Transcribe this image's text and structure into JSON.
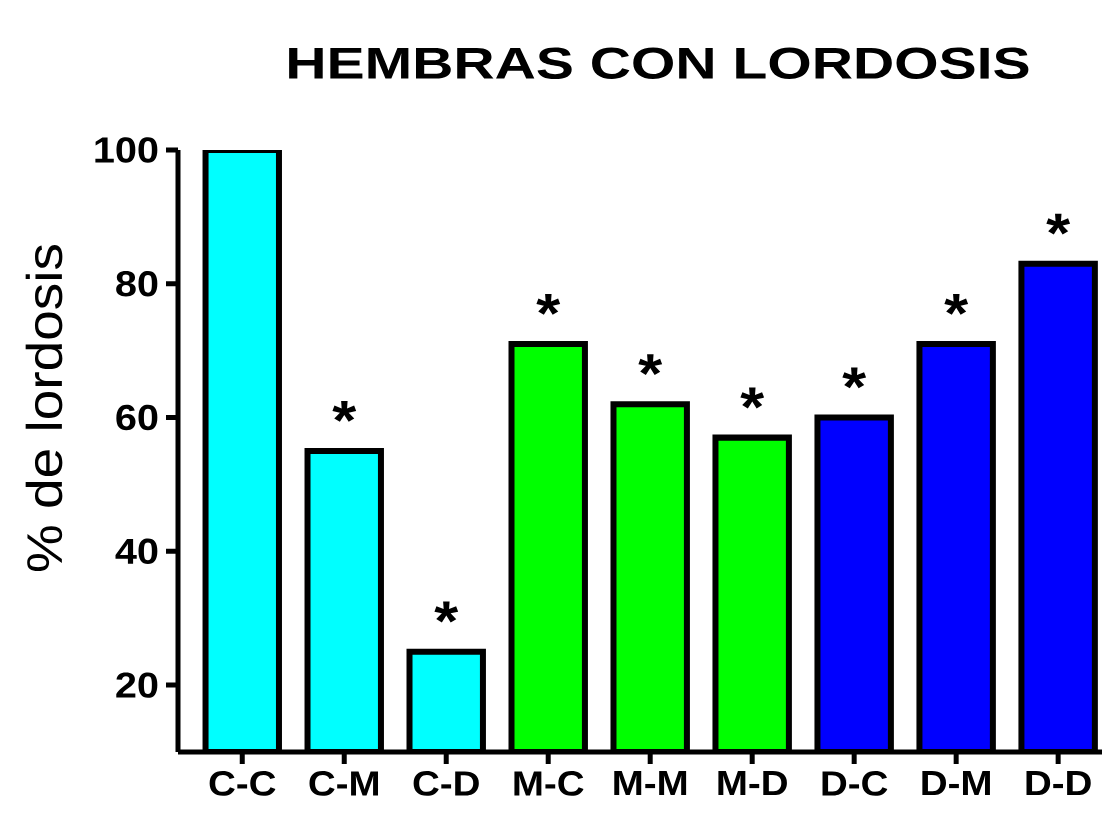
{
  "chart_data": {
    "type": "bar",
    "title": "HEMBRAS CON LORDOSIS",
    "ylabel": "% de lordosis",
    "categories": [
      "C-C",
      "C-M",
      "C-D",
      "M-C",
      "M-M",
      "M-D",
      "D-C",
      "D-M",
      "D-D"
    ],
    "values": [
      100,
      55,
      25,
      71,
      62,
      57,
      60,
      71,
      83
    ],
    "colors": [
      "#00ffff",
      "#00ffff",
      "#00ffff",
      "#00ff00",
      "#00ff00",
      "#00ff00",
      "#0000ff",
      "#0000ff",
      "#0000ff"
    ],
    "ylim": [
      10,
      100
    ],
    "yticks": [
      20,
      40,
      60,
      80,
      100
    ],
    "annotations": [
      {
        "text": "*",
        "x": "C-M",
        "y": 55
      },
      {
        "text": "*",
        "x": "C-D",
        "y": 25
      },
      {
        "text": "*",
        "x": "M-C",
        "y": 71
      },
      {
        "text": "*",
        "x": "M-M",
        "y": 62
      },
      {
        "text": "*",
        "x": "M-D",
        "y": 57
      },
      {
        "text": "*",
        "x": "D-C",
        "y": 60
      },
      {
        "text": "*",
        "x": "D-M",
        "y": 71
      },
      {
        "text": "*",
        "x": "D-D",
        "y": 83
      }
    ]
  }
}
